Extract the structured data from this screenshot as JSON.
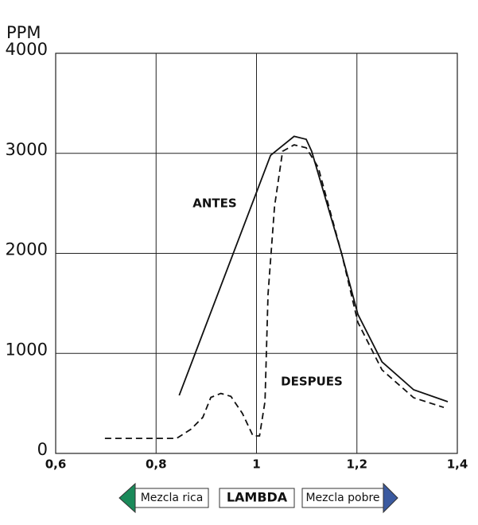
{
  "chart_data": {
    "type": "line",
    "ylabel": "PPM",
    "xlabel": "LAMBDA",
    "left_note": "Mezcla rica",
    "right_note": "Mezcla pobre",
    "xlim": [
      0.6,
      1.4
    ],
    "ylim": [
      0,
      4000
    ],
    "xticks": [
      {
        "value": 0.6,
        "label": "0,6"
      },
      {
        "value": 0.8,
        "label": "0,8"
      },
      1,
      {
        "value": 1.2,
        "label": "1,2"
      },
      {
        "value": 1.4,
        "label": "1,4"
      }
    ],
    "yticks": [
      0,
      1000,
      2000,
      3000,
      4000
    ],
    "grid": true,
    "series": [
      {
        "name": "ANTES",
        "color": "#111111",
        "dashed": false,
        "x": [
          0.846,
          1.028,
          1.075,
          1.099,
          1.11,
          1.17,
          1.202,
          1.25,
          1.313,
          1.381
        ],
        "values": [
          580,
          2980,
          3170,
          3140,
          3020,
          1990,
          1390,
          915,
          636,
          517
        ]
      },
      {
        "name": "DESPUES",
        "color": "#111111",
        "dashed": true,
        "x": [
          0.698,
          0.841,
          0.869,
          0.893,
          0.909,
          0.929,
          0.949,
          0.972,
          0.993,
          1.006,
          1.017,
          1.023,
          1.036,
          1.052,
          1.075,
          1.099,
          1.123,
          1.17,
          1.202,
          1.25,
          1.313,
          1.373
        ],
        "values": [
          150,
          150,
          240,
          360,
          560,
          600,
          570,
          400,
          175,
          175,
          520,
          1590,
          2470,
          3020,
          3085,
          3055,
          2860,
          1990,
          1310,
          835,
          557,
          460
        ]
      }
    ]
  }
}
